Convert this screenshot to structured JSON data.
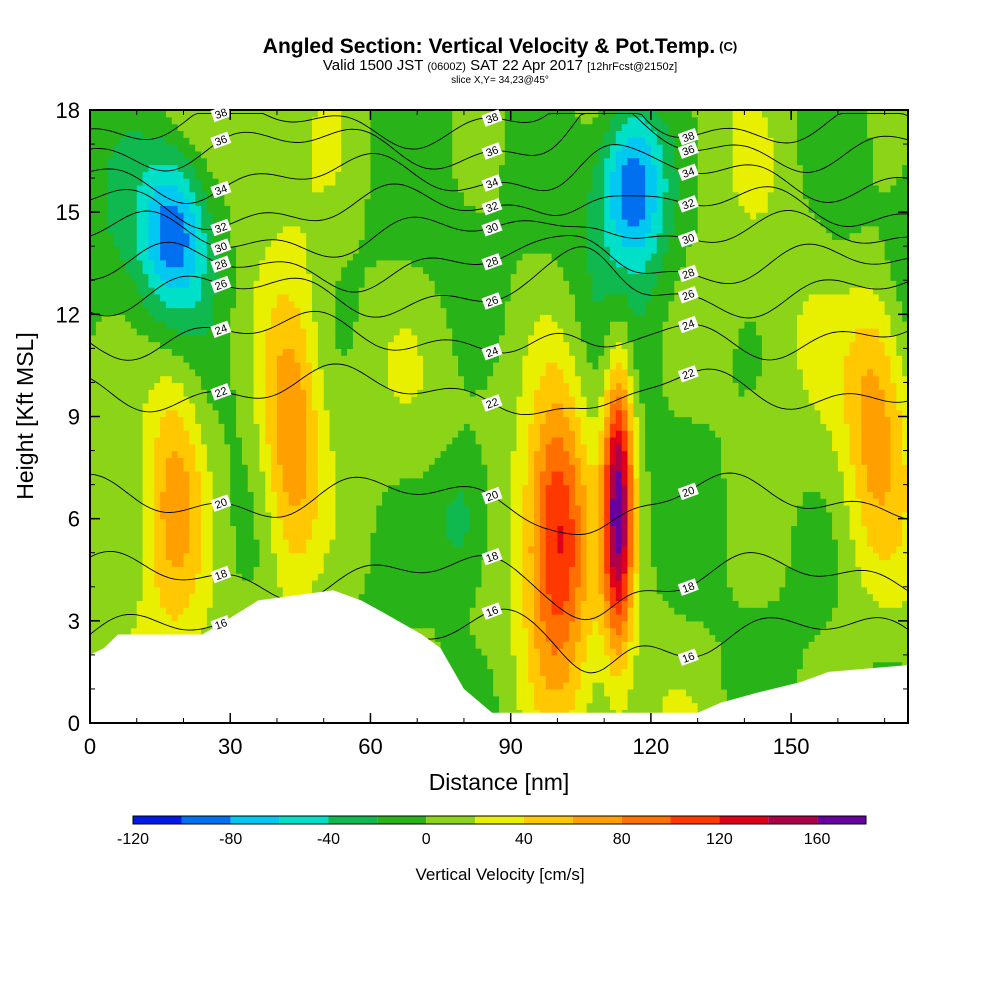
{
  "header": {
    "title": "Angled Section: Vertical Velocity & Pot.Temp.",
    "title_units": "(C)",
    "valid_prefix": "Valid 1500 JST",
    "valid_z": "(0600Z)",
    "valid_date": "SAT 22 Apr 2017",
    "forecast_info": "[12hrFcst@2150z]",
    "slice": "slice X,Y= 34,23@45°"
  },
  "chart_data": {
    "type": "heatmap",
    "xlabel": "Distance [nm]",
    "ylabel": "Height [Kft MSL]",
    "xlim": [
      0,
      175
    ],
    "ylim": [
      0,
      18
    ],
    "x_ticks": [
      "0",
      "30",
      "60",
      "90",
      "120",
      "150"
    ],
    "x_tick_values": [
      0,
      30,
      60,
      90,
      120,
      150
    ],
    "y_ticks": [
      "0",
      "3",
      "6",
      "9",
      "12",
      "15",
      "18"
    ],
    "y_tick_values": [
      0,
      3,
      6,
      9,
      12,
      15,
      18
    ],
    "colorbar": {
      "title": "Vertical Velocity [cm/s]",
      "min": -120,
      "max": 180,
      "step": 20,
      "labels": [
        "-120",
        "-80",
        "-40",
        "0",
        "40",
        "80",
        "120",
        "160"
      ],
      "label_values": [
        -120,
        -80,
        -40,
        0,
        40,
        80,
        120,
        160
      ],
      "colors": [
        "#0018e8",
        "#0070f0",
        "#00c8f0",
        "#00e0c8",
        "#10b850",
        "#28b418",
        "#8cd418",
        "#e8f000",
        "#ffc800",
        "#ffa000",
        "#ff7000",
        "#ff3800",
        "#e00018",
        "#b00048",
        "#6800a0"
      ]
    },
    "terrain": [
      [
        0,
        2
      ],
      [
        3,
        2.2
      ],
      [
        6,
        2.6
      ],
      [
        24,
        2.6
      ],
      [
        29,
        3
      ],
      [
        36,
        3.6
      ],
      [
        52,
        3.9
      ],
      [
        58,
        3.6
      ],
      [
        62,
        3.3
      ],
      [
        71,
        2.6
      ],
      [
        75,
        2.2
      ],
      [
        80,
        1
      ],
      [
        86,
        0.3
      ],
      [
        130,
        0.3
      ],
      [
        135,
        0.6
      ],
      [
        143,
        0.9
      ],
      [
        152,
        1.2
      ],
      [
        158,
        1.5
      ],
      [
        175,
        1.7
      ]
    ],
    "updrafts": [
      {
        "x": 100,
        "z": 5.6,
        "peak": 120
      },
      {
        "x": 113,
        "z": 6.5,
        "peak": 160
      },
      {
        "x": 43,
        "z": 8,
        "peak": 80
      },
      {
        "x": 18,
        "z": 7,
        "peak": 60
      },
      {
        "x": 168,
        "z": 9.5,
        "peak": 60
      }
    ],
    "downdrafts": [
      {
        "x": 18,
        "z": 14.5,
        "peak": -80
      },
      {
        "x": 116,
        "z": 16,
        "peak": -100
      },
      {
        "x": 80,
        "z": 6,
        "peak": -50
      }
    ],
    "pot_temp_contours": [
      {
        "value": 16,
        "z": 2.6
      },
      {
        "value": 18,
        "z": 4.3
      },
      {
        "value": 20,
        "z": 6.6
      },
      {
        "value": 22,
        "z": 9.8
      },
      {
        "value": 24,
        "z": 11.4
      },
      {
        "value": 26,
        "z": 12.6
      },
      {
        "value": 28,
        "z": 13.4
      },
      {
        "value": 30,
        "z": 14.3
      },
      {
        "value": 32,
        "z": 15.1
      },
      {
        "value": 34,
        "z": 16
      },
      {
        "value": 36,
        "z": 16.9
      },
      {
        "value": 38,
        "z": 17.6
      }
    ]
  }
}
